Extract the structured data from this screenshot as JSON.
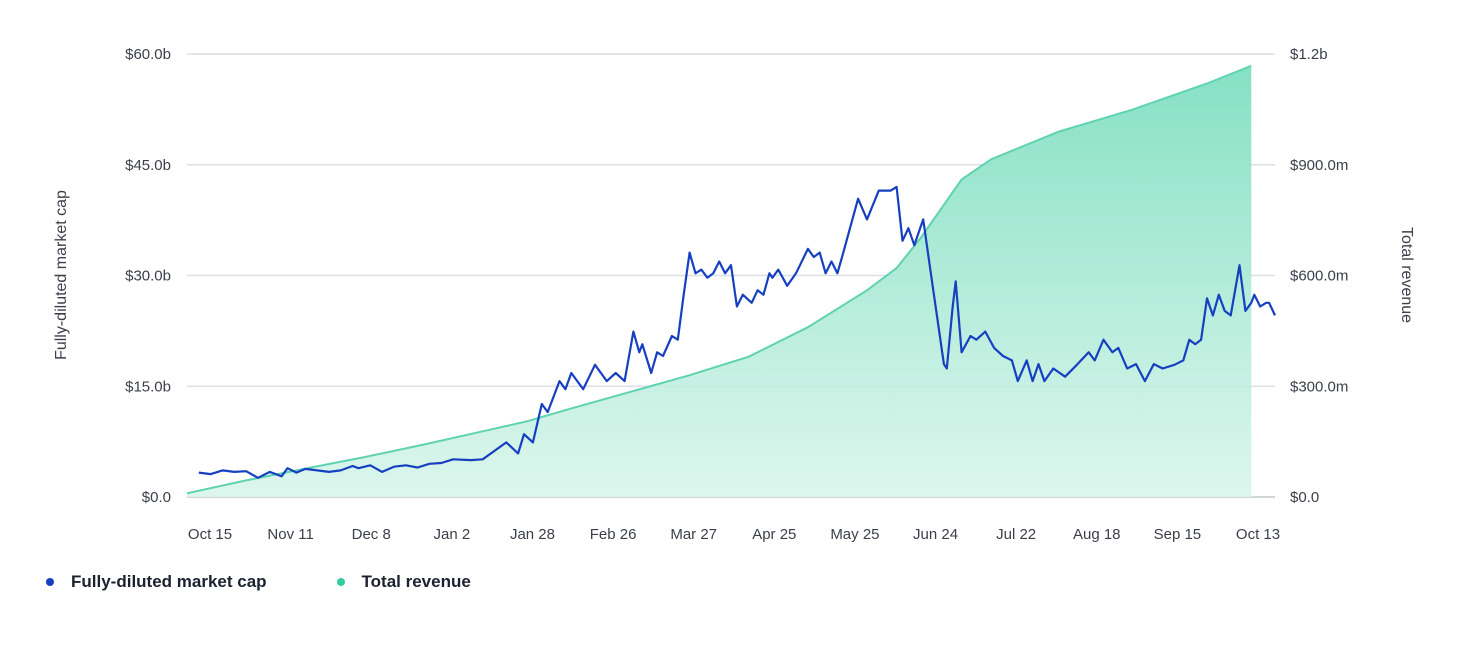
{
  "chart_data": {
    "type": "line+area",
    "x_labels": [
      "Oct 15",
      "Nov 11",
      "Dec 8",
      "Jan 2",
      "Jan 28",
      "Feb 26",
      "Mar 27",
      "Apr 25",
      "May 25",
      "Jun 24",
      "Jul 22",
      "Aug 18",
      "Sep 15",
      "Oct 13"
    ],
    "y_left": {
      "label": "Fully-diluted market cap",
      "min": 0,
      "max": 60,
      "ticks": [
        "$0.0",
        "$15.0b",
        "$30.0b",
        "$45.0b",
        "$60.0b"
      ]
    },
    "y_right": {
      "label": "Total revenue",
      "min": 0,
      "max": 1.2,
      "ticks": [
        "$0.0",
        "$300.0m",
        "$600.0m",
        "$900.0m",
        "$1.2b"
      ]
    },
    "x_range": [
      0,
      368
    ],
    "grid": "horizontal",
    "legend_position": "bottom-left",
    "series": [
      {
        "name": "Fully-diluted market cap",
        "axis": "left",
        "style": "line",
        "color": "#1740c0",
        "unit": "$b",
        "points": [
          [
            4,
            3.3
          ],
          [
            8,
            3.1
          ],
          [
            12,
            3.6
          ],
          [
            16,
            3.4
          ],
          [
            20,
            3.5
          ],
          [
            24,
            2.6
          ],
          [
            28,
            3.4
          ],
          [
            32,
            2.8
          ],
          [
            34,
            3.9
          ],
          [
            37,
            3.3
          ],
          [
            40,
            3.8
          ],
          [
            44,
            3.6
          ],
          [
            48,
            3.4
          ],
          [
            52,
            3.6
          ],
          [
            56,
            4.2
          ],
          [
            58,
            3.9
          ],
          [
            62,
            4.3
          ],
          [
            66,
            3.4
          ],
          [
            70,
            4.1
          ],
          [
            74,
            4.3
          ],
          [
            78,
            4.0
          ],
          [
            82,
            4.5
          ],
          [
            86,
            4.6
          ],
          [
            90,
            5.1
          ],
          [
            96,
            5.0
          ],
          [
            100,
            5.1
          ],
          [
            108,
            7.4
          ],
          [
            112,
            5.9
          ],
          [
            114,
            8.5
          ],
          [
            117,
            7.4
          ],
          [
            120,
            12.6
          ],
          [
            122,
            11.5
          ],
          [
            126,
            15.7
          ],
          [
            128,
            14.6
          ],
          [
            130,
            16.8
          ],
          [
            134,
            14.6
          ],
          [
            138,
            17.9
          ],
          [
            142,
            15.7
          ],
          [
            145,
            16.8
          ],
          [
            148,
            15.7
          ],
          [
            151,
            22.4
          ],
          [
            153,
            19.6
          ],
          [
            154,
            20.7
          ],
          [
            157,
            16.8
          ],
          [
            159,
            19.6
          ],
          [
            161,
            19.1
          ],
          [
            164,
            21.8
          ],
          [
            166,
            21.3
          ],
          [
            168,
            27.4
          ],
          [
            170,
            33.1
          ],
          [
            172,
            30.3
          ],
          [
            174,
            30.8
          ],
          [
            176,
            29.7
          ],
          [
            178,
            30.3
          ],
          [
            180,
            31.9
          ],
          [
            182,
            30.3
          ],
          [
            184,
            31.4
          ],
          [
            186,
            25.8
          ],
          [
            188,
            27.4
          ],
          [
            191,
            26.3
          ],
          [
            193,
            28.0
          ],
          [
            195,
            27.4
          ],
          [
            197,
            30.3
          ],
          [
            198,
            29.7
          ],
          [
            200,
            30.8
          ],
          [
            203,
            28.6
          ],
          [
            206,
            30.3
          ],
          [
            210,
            33.6
          ],
          [
            212,
            32.5
          ],
          [
            214,
            33.1
          ],
          [
            216,
            30.3
          ],
          [
            218,
            31.9
          ],
          [
            220,
            30.3
          ],
          [
            222,
            33.1
          ],
          [
            227,
            40.4
          ],
          [
            230,
            37.6
          ],
          [
            234,
            41.5
          ],
          [
            238,
            41.5
          ],
          [
            240,
            42.0
          ],
          [
            242,
            34.7
          ],
          [
            244,
            36.4
          ],
          [
            246,
            34.1
          ],
          [
            249,
            37.6
          ],
          [
            252,
            29.2
          ],
          [
            256,
            18.0
          ],
          [
            257,
            17.4
          ],
          [
            259,
            25.8
          ],
          [
            260,
            29.2
          ],
          [
            262,
            19.6
          ],
          [
            265,
            21.8
          ],
          [
            267,
            21.3
          ],
          [
            270,
            22.4
          ],
          [
            273,
            20.2
          ],
          [
            276,
            19.1
          ],
          [
            279,
            18.5
          ],
          [
            281,
            15.7
          ],
          [
            284,
            18.5
          ],
          [
            286,
            15.7
          ],
          [
            288,
            18.0
          ],
          [
            290,
            15.7
          ],
          [
            293,
            17.4
          ],
          [
            297,
            16.3
          ],
          [
            301,
            17.9
          ],
          [
            305,
            19.6
          ],
          [
            307,
            18.5
          ],
          [
            310,
            21.3
          ],
          [
            313,
            19.6
          ],
          [
            315,
            20.2
          ],
          [
            318,
            17.4
          ],
          [
            321,
            18.0
          ],
          [
            324,
            15.7
          ],
          [
            327,
            18.0
          ],
          [
            330,
            17.4
          ],
          [
            334,
            17.9
          ],
          [
            337,
            18.5
          ],
          [
            339,
            21.3
          ],
          [
            341,
            20.7
          ],
          [
            343,
            21.3
          ],
          [
            345,
            26.9
          ],
          [
            347,
            24.6
          ],
          [
            349,
            27.4
          ],
          [
            351,
            25.2
          ],
          [
            353,
            24.6
          ],
          [
            356,
            31.4
          ],
          [
            358,
            25.2
          ],
          [
            360,
            26.3
          ],
          [
            361,
            27.4
          ],
          [
            363,
            25.8
          ],
          [
            365,
            26.3
          ],
          [
            366,
            26.3
          ],
          [
            368,
            24.6
          ]
        ]
      },
      {
        "name": "Total revenue",
        "axis": "right",
        "style": "area",
        "color": "#5fd3b0",
        "unit": "$m",
        "points": [
          [
            0,
            10
          ],
          [
            20,
            45
          ],
          [
            40,
            77
          ],
          [
            60,
            108
          ],
          [
            80,
            142
          ],
          [
            100,
            178
          ],
          [
            115,
            205
          ],
          [
            130,
            240
          ],
          [
            150,
            285
          ],
          [
            170,
            330
          ],
          [
            190,
            380
          ],
          [
            210,
            460
          ],
          [
            230,
            560
          ],
          [
            240,
            620
          ],
          [
            248,
            700
          ],
          [
            255,
            780
          ],
          [
            262,
            860
          ],
          [
            272,
            915
          ],
          [
            295,
            990
          ],
          [
            320,
            1050
          ],
          [
            345,
            1120
          ],
          [
            360,
            1168
          ]
        ]
      }
    ]
  }
}
